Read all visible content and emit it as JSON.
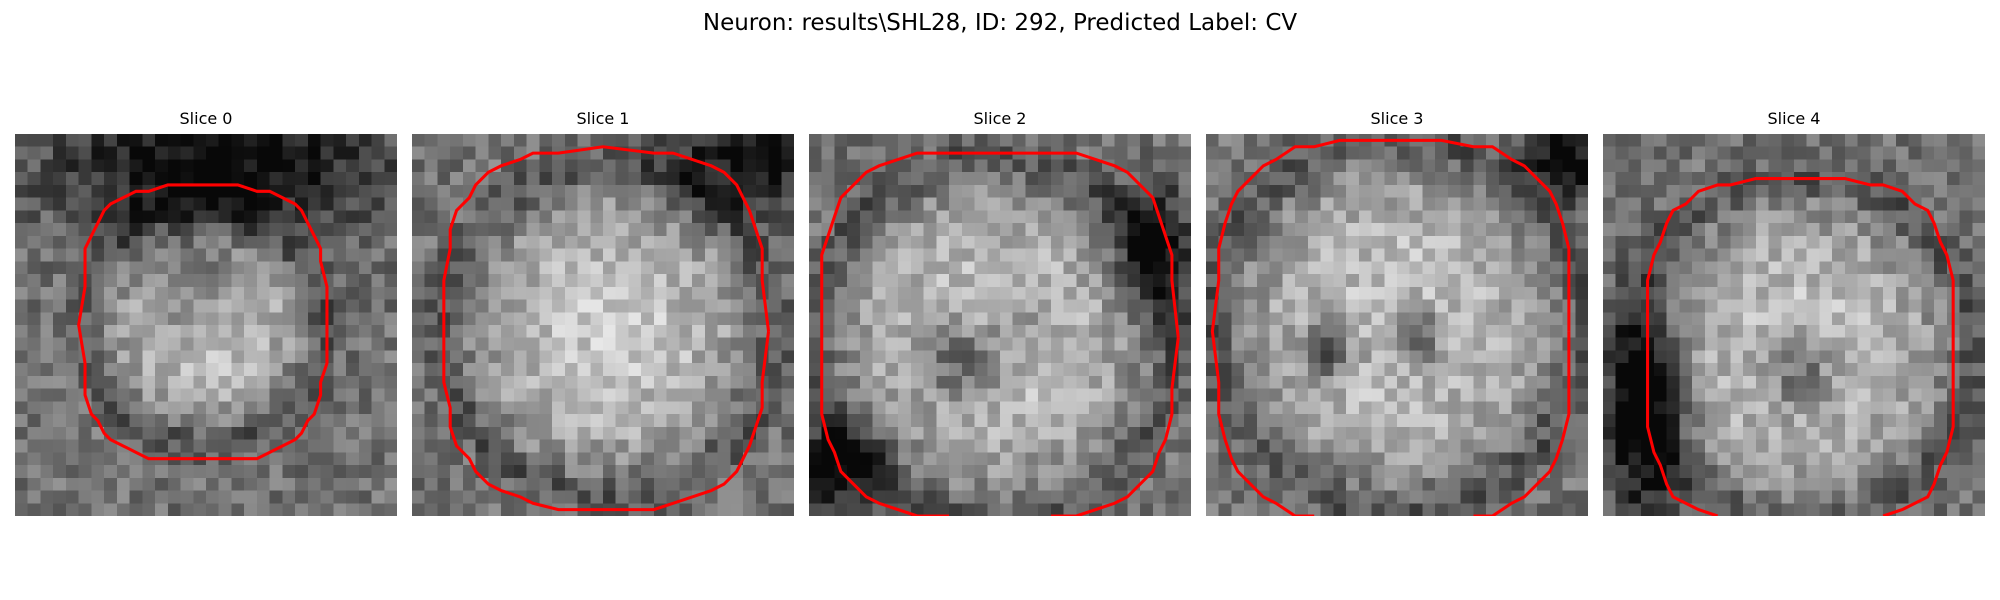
{
  "figure": {
    "title": "Neuron: results\\SHL28, ID: 292, Predicted Label: CV"
  },
  "panels": [
    {
      "title": "Slice 0"
    },
    {
      "title": "Slice 1"
    },
    {
      "title": "Slice 2"
    },
    {
      "title": "Slice 3"
    },
    {
      "title": "Slice 4"
    }
  ],
  "colors": {
    "background": "#ffffff",
    "contour": "#ff0000",
    "image_colormap": "gray"
  }
}
